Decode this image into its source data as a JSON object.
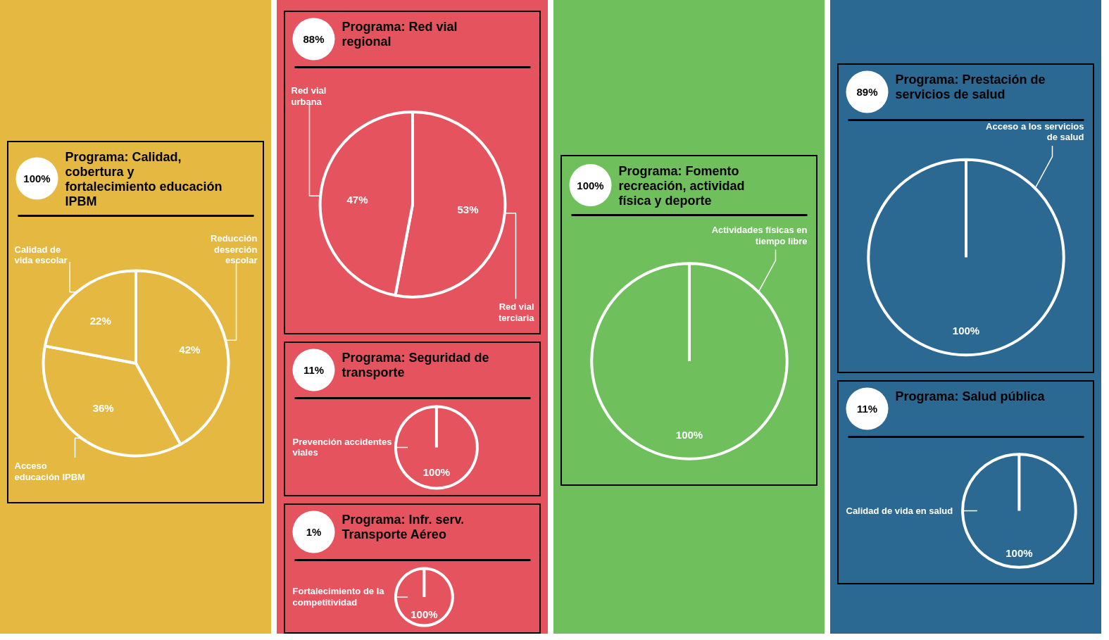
{
  "chart_data": [
    {
      "type": "pie",
      "title": "Programa: Calidad, cobertura y fortalecimiento educación IPBM",
      "annotations": [
        "100%"
      ],
      "categories": [
        "Reducción deserción escolar",
        "Acceso educación IPBM",
        "Calidad de vida escolar"
      ],
      "values": [
        42,
        36,
        22
      ],
      "value_labels": [
        "42%",
        "36%",
        "22%"
      ],
      "colors": [
        "#e5b842",
        "#e5b842",
        "#e5b842"
      ]
    },
    {
      "type": "pie",
      "title": "Programa: Red vial regional",
      "annotations": [
        "88%"
      ],
      "categories": [
        "Red vial terciaria",
        "Red vial urbana"
      ],
      "values": [
        53,
        47
      ],
      "value_labels": [
        "53%",
        "47%"
      ],
      "colors": [
        "#e5545e",
        "#e5545e"
      ]
    },
    {
      "type": "pie",
      "title": "Programa: Seguridad de transporte",
      "annotations": [
        "11%"
      ],
      "categories": [
        "Prevención accidentes viales"
      ],
      "values": [
        100
      ],
      "value_labels": [
        "100%"
      ],
      "colors": [
        "#e5545e"
      ]
    },
    {
      "type": "pie",
      "title": "Programa:  Infr. serv. Transporte Aéreo",
      "annotations": [
        "1%"
      ],
      "categories": [
        "Fortalecimiento de la competitividad"
      ],
      "values": [
        100
      ],
      "value_labels": [
        "100%"
      ],
      "colors": [
        "#e5545e"
      ]
    },
    {
      "type": "pie",
      "title": "Programa: Fomento recreación, actividad física y deporte",
      "annotations": [
        "100%"
      ],
      "categories": [
        "Actividades físicas en tiempo libre"
      ],
      "values": [
        100
      ],
      "value_labels": [
        "100%"
      ],
      "colors": [
        "#6fc05c"
      ]
    },
    {
      "type": "pie",
      "title": "Programa: Prestación de servicios de salud",
      "annotations": [
        "89%"
      ],
      "categories": [
        "Acceso a los servicios de salud"
      ],
      "values": [
        100
      ],
      "value_labels": [
        "100%"
      ],
      "colors": [
        "#2b6892"
      ]
    },
    {
      "type": "pie",
      "title": "Programa: Salud pública",
      "annotations": [
        "11%"
      ],
      "categories": [
        "Calidad de vida en salud"
      ],
      "values": [
        100
      ],
      "value_labels": [
        "100%"
      ],
      "colors": [
        "#2b6892"
      ]
    }
  ]
}
